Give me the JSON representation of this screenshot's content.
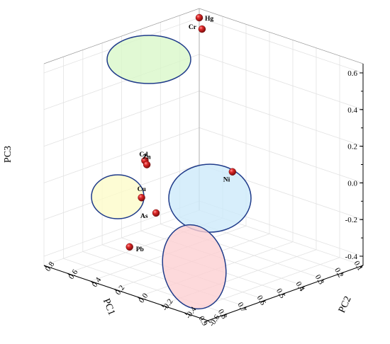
{
  "chart_data": {
    "type": "scatter3d",
    "xlabel": "PC1",
    "ylabel": "PC2",
    "zlabel": "PC3",
    "xlim": [
      0.1,
      0.9
    ],
    "ylim": [
      -0.6,
      0.8
    ],
    "zlim": [
      -0.45,
      0.65
    ],
    "x_ticks": [
      "0.1",
      "0.2",
      "0.3",
      "0.4",
      "0.5",
      "0.6",
      "0.7",
      "0.8",
      "0.9"
    ],
    "y_ticks": [
      "-0.6",
      "-0.4",
      "-0.2",
      "0.0",
      "0.2",
      "0.4",
      "0.6",
      "0.8"
    ],
    "z_ticks": [
      "-0.4",
      "-0.2",
      "0.0",
      "0.2",
      "0.4",
      "0.6"
    ],
    "grid": true,
    "marker_color": "#c8181e",
    "points": [
      {
        "label": "Hg",
        "x": 0.1,
        "y": 0.8,
        "z": 0.6
      },
      {
        "label": "Cr",
        "x": 0.11,
        "y": 0.76,
        "z": 0.55
      },
      {
        "label": "Cd",
        "x": 0.44,
        "y": 0.7,
        "z": -0.03
      },
      {
        "label": "Zn",
        "x": 0.37,
        "y": 0.8,
        "z": -0.1
      },
      {
        "label": "Cu",
        "x": 0.56,
        "y": 0.53,
        "z": -0.15
      },
      {
        "label": "Ni",
        "x": 0.14,
        "y": 0.45,
        "z": -0.15
      },
      {
        "label": "As",
        "x": 0.57,
        "y": 0.39,
        "z": -0.2
      },
      {
        "label": "Pb",
        "x": 0.67,
        "y": 0.45,
        "z": -0.36
      }
    ],
    "ellipses": [
      {
        "fill": "#d9f7c9",
        "stroke": "#1f3b8a"
      },
      {
        "fill": "#fdfbc9",
        "stroke": "#1f3b8a"
      },
      {
        "fill": "#cdeafa",
        "stroke": "#1f3b8a"
      },
      {
        "fill": "#fcd0d2",
        "stroke": "#1f3b8a"
      }
    ]
  }
}
